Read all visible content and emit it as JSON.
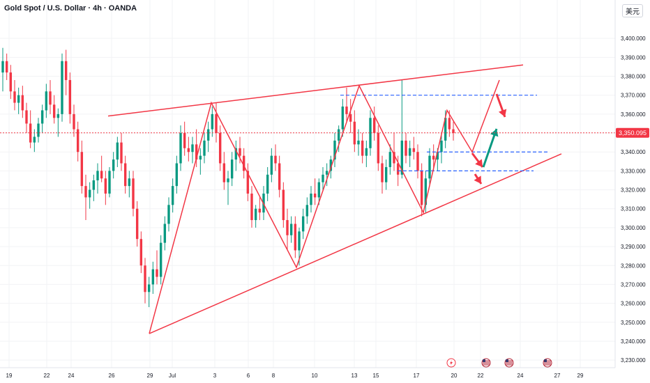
{
  "header": {
    "title": "Gold Spot / U.S. Dollar · 4h · OANDA",
    "currency": "美元"
  },
  "colors": {
    "up": "#089981",
    "down": "#f23645",
    "drawing": "#f23645",
    "level": "#2962ff",
    "arrow_up": "#089981",
    "arrow_down": "#f23645",
    "price_line": "#f23645"
  },
  "events": [
    {
      "icon": "lightning-icon",
      "date": "Jul 18"
    },
    {
      "icon": "us-flag-icon",
      "date": "Jul 22"
    },
    {
      "icon": "us-flag-icon",
      "date": "Jul 23"
    },
    {
      "icon": "us-flag-icon",
      "date": "Jul 24"
    }
  ],
  "chart_data": {
    "type": "candlestick",
    "symbol": "Gold Spot / U.S. Dollar",
    "timeframe": "4h",
    "ylim": [
      3226,
      3410
    ],
    "y_ticks": [
      "3,400.000",
      "3,390.000",
      "3,380.000",
      "3,370.000",
      "3,360.000",
      "3,350.000",
      "3,340.000",
      "3,330.000",
      "3,320.000",
      "3,310.000",
      "3,300.000",
      "3,290.000",
      "3,280.000",
      "3,270.000",
      "3,260.000",
      "3,250.000",
      "3,240.000",
      "3,230.000"
    ],
    "x_ticks": [
      "19",
      "22",
      "24",
      "26",
      "29",
      "Jul",
      "3",
      "6",
      "8",
      "10",
      "13",
      "15",
      "17",
      "20",
      "22",
      "24",
      "27",
      "29"
    ],
    "last_price": "3,350.095",
    "candles": [
      [
        3382,
        3395,
        3372,
        3388
      ],
      [
        3388,
        3392,
        3378,
        3382
      ],
      [
        3382,
        3386,
        3368,
        3372
      ],
      [
        3372,
        3378,
        3362,
        3366
      ],
      [
        3366,
        3374,
        3360,
        3370
      ],
      [
        3370,
        3375,
        3358,
        3362
      ],
      [
        3362,
        3366,
        3350,
        3355
      ],
      [
        3355,
        3362,
        3342,
        3345
      ],
      [
        3345,
        3352,
        3340,
        3348
      ],
      [
        3348,
        3358,
        3345,
        3355
      ],
      [
        3355,
        3365,
        3350,
        3362
      ],
      [
        3362,
        3376,
        3358,
        3372
      ],
      [
        3372,
        3378,
        3360,
        3365
      ],
      [
        3365,
        3370,
        3355,
        3358
      ],
      [
        3358,
        3363,
        3348,
        3360
      ],
      [
        3360,
        3392,
        3356,
        3388
      ],
      [
        3388,
        3394,
        3370,
        3378
      ],
      [
        3378,
        3382,
        3355,
        3360
      ],
      [
        3360,
        3365,
        3348,
        3352
      ],
      [
        3352,
        3356,
        3335,
        3340
      ],
      [
        3340,
        3346,
        3318,
        3322
      ],
      [
        3322,
        3328,
        3304,
        3316
      ],
      [
        3316,
        3324,
        3310,
        3320
      ],
      [
        3320,
        3328,
        3314,
        3325
      ],
      [
        3325,
        3334,
        3318,
        3330
      ],
      [
        3330,
        3338,
        3324,
        3326
      ],
      [
        3326,
        3330,
        3312,
        3318
      ],
      [
        3318,
        3332,
        3316,
        3330
      ],
      [
        3330,
        3340,
        3326,
        3336
      ],
      [
        3336,
        3348,
        3332,
        3345
      ],
      [
        3345,
        3350,
        3330,
        3334
      ],
      [
        3334,
        3338,
        3318,
        3322
      ],
      [
        3322,
        3330,
        3316,
        3326
      ],
      [
        3326,
        3330,
        3306,
        3310
      ],
      [
        3310,
        3314,
        3290,
        3294
      ],
      [
        3294,
        3298,
        3276,
        3280
      ],
      [
        3280,
        3284,
        3260,
        3266
      ],
      [
        3266,
        3274,
        3258,
        3270
      ],
      [
        3270,
        3282,
        3265,
        3278
      ],
      [
        3278,
        3288,
        3270,
        3274
      ],
      [
        3274,
        3296,
        3270,
        3292
      ],
      [
        3292,
        3306,
        3288,
        3302
      ],
      [
        3302,
        3316,
        3298,
        3312
      ],
      [
        3312,
        3326,
        3308,
        3322
      ],
      [
        3322,
        3338,
        3318,
        3334
      ],
      [
        3334,
        3354,
        3330,
        3350
      ],
      [
        3350,
        3356,
        3338,
        3342
      ],
      [
        3342,
        3348,
        3335,
        3340
      ],
      [
        3340,
        3348,
        3334,
        3344
      ],
      [
        3344,
        3352,
        3332,
        3336
      ],
      [
        3336,
        3342,
        3328,
        3338
      ],
      [
        3338,
        3350,
        3334,
        3346
      ],
      [
        3346,
        3356,
        3340,
        3352
      ],
      [
        3352,
        3364,
        3348,
        3360
      ],
      [
        3360,
        3366,
        3345,
        3350
      ],
      [
        3350,
        3354,
        3330,
        3334
      ],
      [
        3334,
        3340,
        3320,
        3324
      ],
      [
        3324,
        3330,
        3312,
        3326
      ],
      [
        3326,
        3340,
        3322,
        3336
      ],
      [
        3336,
        3346,
        3330,
        3342
      ],
      [
        3342,
        3348,
        3334,
        3338
      ],
      [
        3338,
        3342,
        3326,
        3330
      ],
      [
        3330,
        3334,
        3314,
        3318
      ],
      [
        3318,
        3322,
        3300,
        3304
      ],
      [
        3304,
        3312,
        3300,
        3310
      ],
      [
        3310,
        3316,
        3304,
        3308
      ],
      [
        3308,
        3322,
        3304,
        3318
      ],
      [
        3318,
        3332,
        3314,
        3328
      ],
      [
        3328,
        3342,
        3324,
        3338
      ],
      [
        3338,
        3344,
        3330,
        3334
      ],
      [
        3334,
        3338,
        3316,
        3320
      ],
      [
        3320,
        3324,
        3300,
        3304
      ],
      [
        3304,
        3310,
        3288,
        3296
      ],
      [
        3296,
        3306,
        3292,
        3302
      ],
      [
        3302,
        3306,
        3284,
        3288
      ],
      [
        3288,
        3300,
        3280,
        3298
      ],
      [
        3298,
        3310,
        3294,
        3306
      ],
      [
        3306,
        3316,
        3302,
        3312
      ],
      [
        3312,
        3322,
        3308,
        3318
      ],
      [
        3318,
        3326,
        3312,
        3316
      ],
      [
        3316,
        3326,
        3312,
        3324
      ],
      [
        3324,
        3332,
        3320,
        3328
      ],
      [
        3328,
        3334,
        3322,
        3330
      ],
      [
        3330,
        3338,
        3326,
        3336
      ],
      [
        3336,
        3350,
        3332,
        3346
      ],
      [
        3346,
        3354,
        3340,
        3352
      ],
      [
        3352,
        3368,
        3348,
        3364
      ],
      [
        3364,
        3374,
        3356,
        3360
      ],
      [
        3360,
        3368,
        3350,
        3356
      ],
      [
        3356,
        3362,
        3340,
        3344
      ],
      [
        3344,
        3352,
        3338,
        3346
      ],
      [
        3346,
        3350,
        3334,
        3338
      ],
      [
        3338,
        3346,
        3332,
        3342
      ],
      [
        3342,
        3362,
        3338,
        3358
      ],
      [
        3358,
        3364,
        3346,
        3350
      ],
      [
        3350,
        3354,
        3330,
        3334
      ],
      [
        3334,
        3338,
        3318,
        3324
      ],
      [
        3324,
        3336,
        3320,
        3332
      ],
      [
        3332,
        3344,
        3328,
        3340
      ],
      [
        3340,
        3350,
        3330,
        3334
      ],
      [
        3334,
        3338,
        3322,
        3328
      ],
      [
        3328,
        3378,
        3326,
        3346
      ],
      [
        3346,
        3350,
        3334,
        3338
      ],
      [
        3338,
        3346,
        3332,
        3342
      ],
      [
        3342,
        3348,
        3336,
        3340
      ],
      [
        3340,
        3344,
        3326,
        3330
      ],
      [
        3330,
        3334,
        3306,
        3312
      ],
      [
        3312,
        3330,
        3308,
        3326
      ],
      [
        3326,
        3342,
        3322,
        3338
      ],
      [
        3338,
        3344,
        3330,
        3336
      ],
      [
        3336,
        3342,
        3330,
        3340
      ],
      [
        3340,
        3350,
        3334,
        3346
      ],
      [
        3346,
        3362,
        3342,
        3358
      ],
      [
        3358,
        3362,
        3348,
        3352
      ],
      [
        3352,
        3356,
        3346,
        3350
      ]
    ],
    "drawings": {
      "upper_trendline": [
        [
          "Jun 26",
          3359
        ],
        [
          "Jul 24",
          3386
        ]
      ],
      "lower_trendline": [
        [
          "Jun 29",
          3244
        ],
        [
          "Jul 25",
          3339
        ]
      ],
      "support_levels": [
        3370,
        3340,
        3330
      ],
      "zigzag": [
        3244,
        3366,
        3279,
        3375,
        3308,
        3362,
        3340,
        3378
      ],
      "arrows": [
        "down",
        "down",
        "up",
        "up",
        "down"
      ]
    }
  }
}
